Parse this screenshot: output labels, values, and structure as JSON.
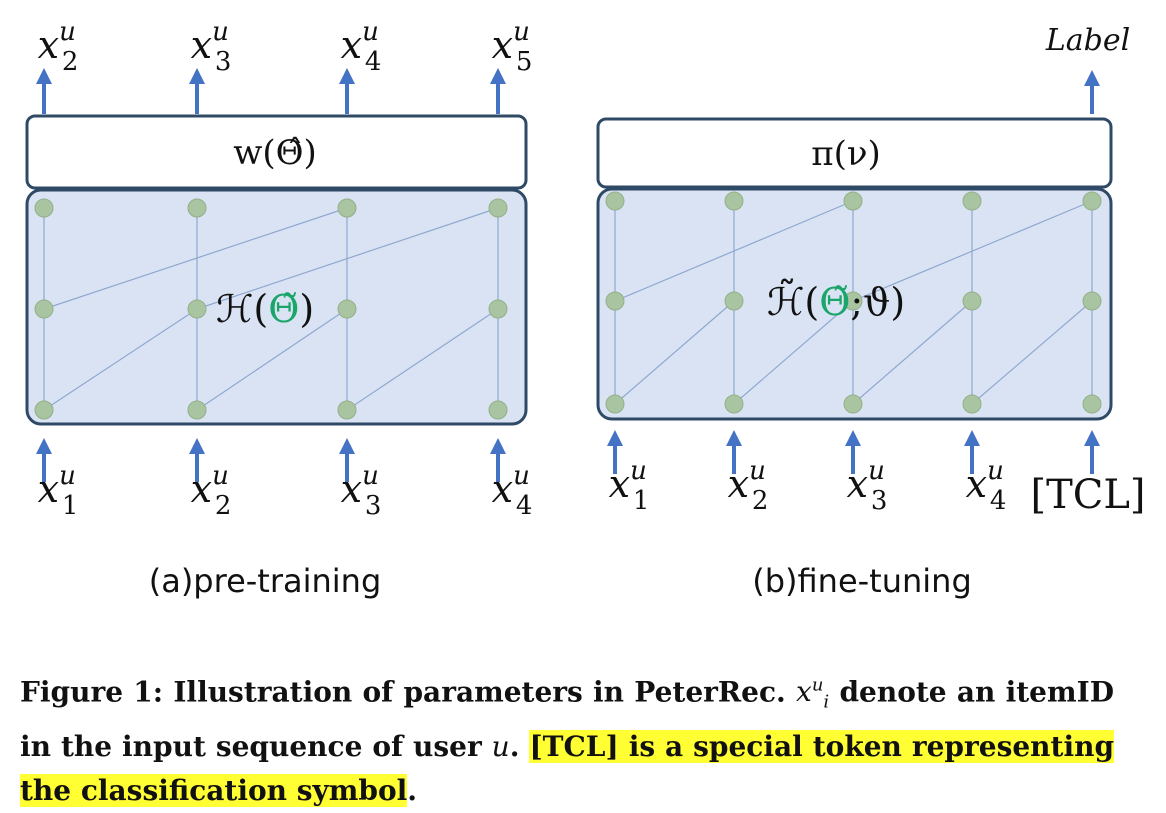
{
  "panel_a": {
    "outputs": [
      {
        "base": "x",
        "sup": "u",
        "sub": "2"
      },
      {
        "base": "x",
        "sup": "u",
        "sub": "3"
      },
      {
        "base": "x",
        "sup": "u",
        "sub": "4"
      },
      {
        "base": "x",
        "sup": "u",
        "sub": "5"
      }
    ],
    "top_box_label": "w(Θ̂)",
    "network_label_prefix": "ℋ(",
    "network_label_theta": "Θ̃",
    "network_label_suffix": ")",
    "inputs": [
      {
        "base": "x",
        "sup": "u",
        "sub": "1"
      },
      {
        "base": "x",
        "sup": "u",
        "sub": "2"
      },
      {
        "base": "x",
        "sup": "u",
        "sub": "3"
      },
      {
        "base": "x",
        "sup": "u",
        "sub": "4"
      }
    ],
    "subtitle": "(a)pre-training"
  },
  "panel_b": {
    "output_label": "Label",
    "top_box_label": "π(ν)",
    "network_label_prefix": "ℋ̃(",
    "network_label_theta": "Θ̃",
    "network_label_suffix": ";ϑ)",
    "inputs": [
      {
        "base": "x",
        "sup": "u",
        "sub": "1"
      },
      {
        "base": "x",
        "sup": "u",
        "sub": "2"
      },
      {
        "base": "x",
        "sup": "u",
        "sub": "3"
      },
      {
        "base": "x",
        "sup": "u",
        "sub": "4"
      }
    ],
    "extra_input": "[TCL]",
    "subtitle": "(b)fine-tuning"
  },
  "caption": {
    "part1": "Figure 1: Illustration of parameters in PeterRec.",
    "var_base": "x",
    "var_sup": "u",
    "var_sub": "i",
    "part2": "denote an itemID in the input sequence of user",
    "var_user": "u",
    "part3": ".",
    "highlight": "[TCL] is a special token representing the classification symbol",
    "part4": "."
  },
  "colors": {
    "arrow": "#4472c4",
    "box_fill": "#dae3f3",
    "box_stroke": "#2f4a66",
    "node": "#a9c4a0",
    "edge": "#8fa8d0",
    "theta": "#1aa56a",
    "highlight": "#ffff33"
  }
}
